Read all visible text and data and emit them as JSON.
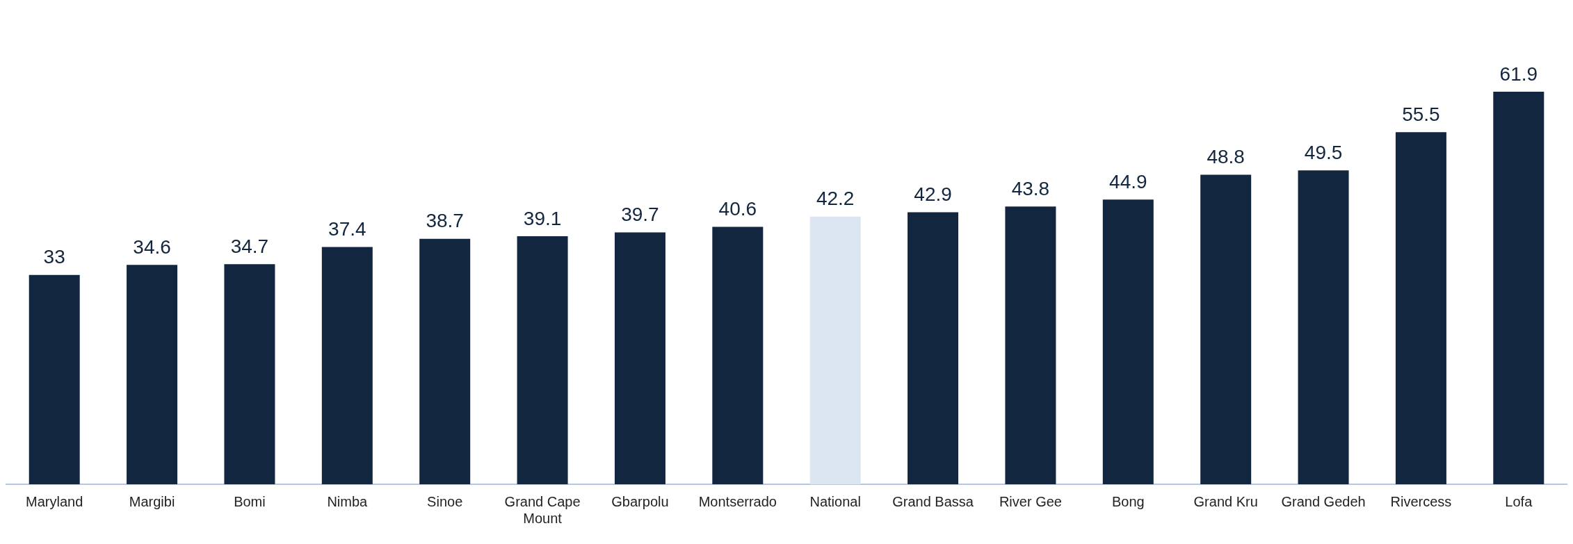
{
  "chart_data": {
    "type": "bar",
    "categories": [
      "Maryland",
      "Margibi",
      "Bomi",
      "Nimba",
      "Sinoe",
      "Grand Cape Mount",
      "Gbarpolu",
      "Montserrado",
      "National",
      "Grand Bassa",
      "River Gee",
      "Bong",
      "Grand Kru",
      "Grand Gedeh",
      "Rivercess",
      "Lofa"
    ],
    "values": [
      33,
      34.6,
      34.7,
      37.4,
      38.7,
      39.1,
      39.7,
      40.6,
      42.2,
      42.9,
      43.8,
      44.9,
      48.8,
      49.5,
      55.5,
      61.9
    ],
    "colors": [
      "#12263f",
      "#12263f",
      "#12263f",
      "#12263f",
      "#12263f",
      "#12263f",
      "#12263f",
      "#12263f",
      "#dce6f2",
      "#12263f",
      "#12263f",
      "#12263f",
      "#12263f",
      "#12263f",
      "#12263f",
      "#12263f"
    ],
    "data_labels": true,
    "grid": false,
    "legend": false
  }
}
